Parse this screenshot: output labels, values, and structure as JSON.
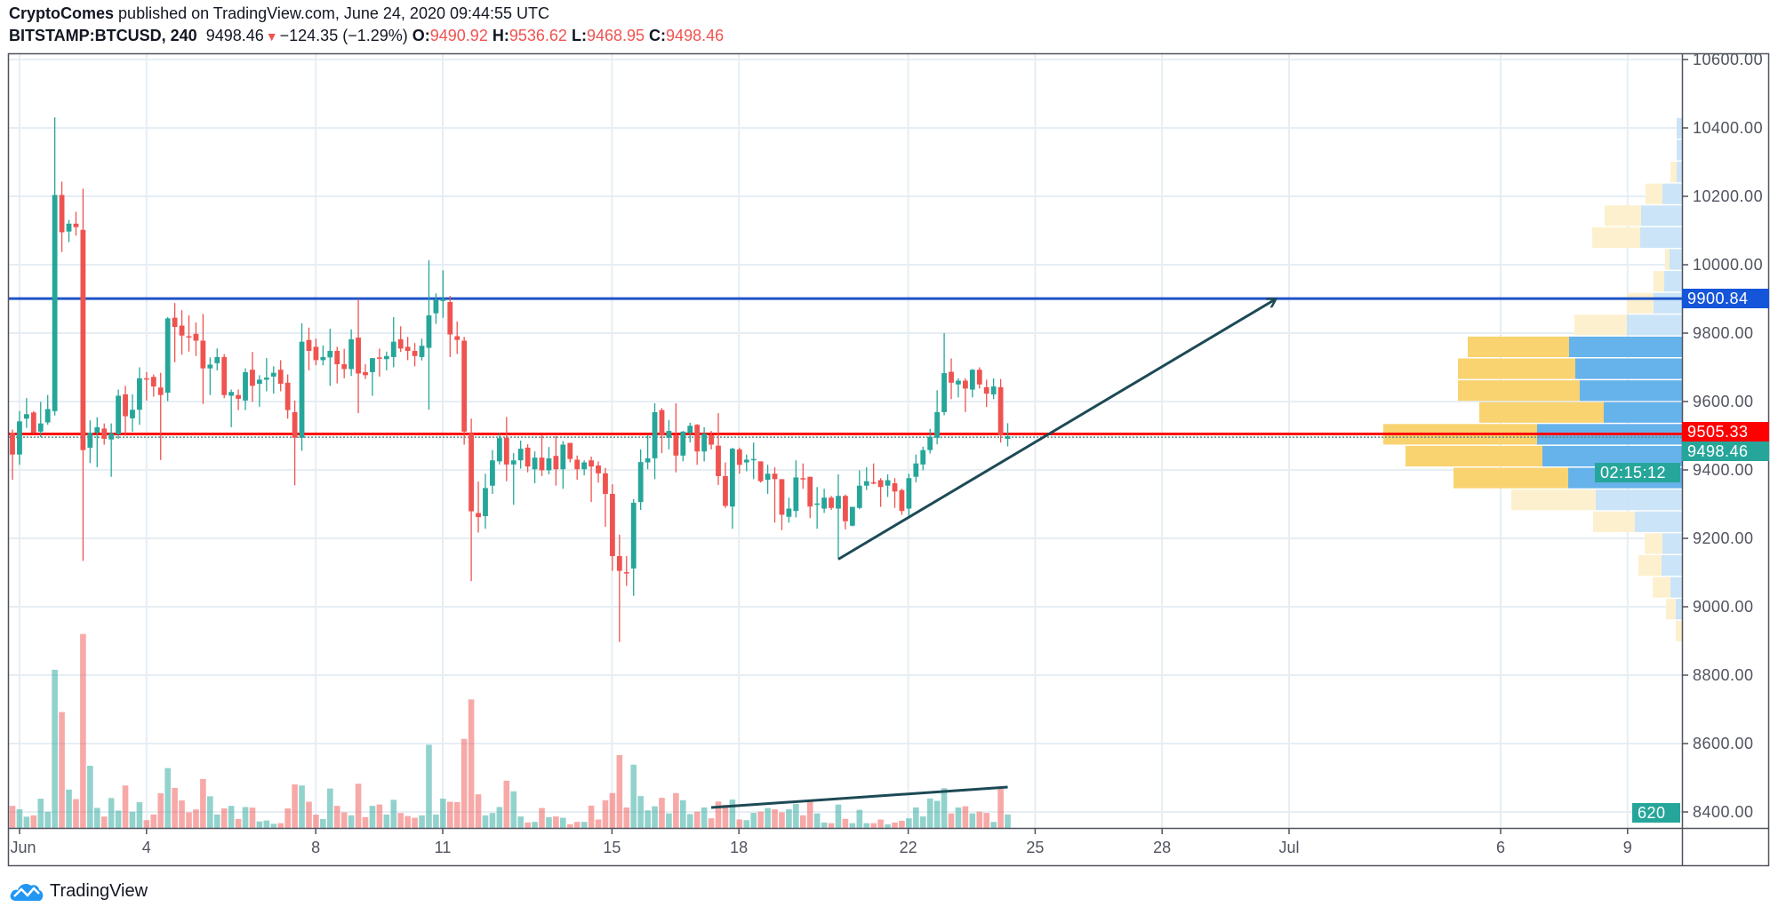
{
  "header": {
    "author": "CryptoComes",
    "published": "published on TradingView.com, June 24, 2020 09:44:55 UTC",
    "symbol": "BITSTAMP:BTCUSD, 240",
    "last": "9498.46",
    "change": "−124.35 (−1.29%)",
    "o_label": "O:",
    "o": "9490.92",
    "h_label": "H:",
    "h": "9536.62",
    "l_label": "L:",
    "l": "9468.95",
    "c_label": "C:",
    "c": "9498.46"
  },
  "footer": {
    "brand": "TradingView"
  },
  "colors": {
    "up": "#26a69a",
    "down": "#ef5350",
    "up_volume": "rgba(38,166,154,0.5)",
    "down_volume": "rgba(239,83,80,0.5)",
    "resistance": "#1e53c8",
    "support": "#ff0000",
    "annotation": "#1c4a55",
    "grid": "#e6eef4",
    "profile_up": "#5eaeea",
    "profile_down": "#f9d168",
    "profile_up_light": "#c8e3f7",
    "profile_down_light": "#fdefcb"
  },
  "chart_data": {
    "type": "candlestick",
    "interval": "240",
    "columns": [
      "open",
      "high",
      "low",
      "close",
      "volume"
    ],
    "candles": [
      [
        9509,
        9518,
        9371,
        9445,
        1020
      ],
      [
        9445,
        9572,
        9415,
        9542,
        860
      ],
      [
        9550,
        9610,
        9523,
        9563,
        520
      ],
      [
        9568,
        9572,
        9505,
        9509,
        580
      ],
      [
        9512,
        9599,
        9496,
        9536,
        1350
      ],
      [
        9539,
        9619,
        9532,
        9578,
        745
      ],
      [
        9572,
        10431,
        9559,
        10204,
        7300
      ],
      [
        10204,
        10243,
        10037,
        10095,
        5350
      ],
      [
        10097,
        10131,
        10066,
        10120,
        1770
      ],
      [
        10120,
        10155,
        10085,
        10110,
        1330
      ],
      [
        10102,
        10222,
        9134,
        9458,
        8950
      ],
      [
        9465,
        9545,
        9420,
        9509,
        2870
      ],
      [
        9509,
        9554,
        9408,
        9525,
        925
      ],
      [
        9521,
        9536,
        9474,
        9491,
        525
      ],
      [
        9489,
        9536,
        9380,
        9507,
        1380
      ],
      [
        9505,
        9635,
        9491,
        9617,
        800
      ],
      [
        9621,
        9646,
        9500,
        9557,
        1960
      ],
      [
        9551,
        9621,
        9512,
        9576,
        745
      ],
      [
        9576,
        9700,
        9532,
        9668,
        1190
      ],
      [
        9668,
        9686,
        9603,
        9666,
        360
      ],
      [
        9672,
        9679,
        9614,
        9644,
        620
      ],
      [
        9641,
        9684,
        9429,
        9619,
        1600
      ],
      [
        9626,
        9847,
        9601,
        9843,
        2760
      ],
      [
        9845,
        9888,
        9715,
        9818,
        1850
      ],
      [
        9822,
        9867,
        9737,
        9793,
        1270
      ],
      [
        9791,
        9852,
        9746,
        9789,
        720
      ],
      [
        9798,
        9831,
        9733,
        9778,
        855
      ],
      [
        9778,
        9856,
        9593,
        9697,
        2260
      ],
      [
        9697,
        9729,
        9619,
        9708,
        1460
      ],
      [
        9712,
        9755,
        9691,
        9730,
        620
      ],
      [
        9730,
        9739,
        9610,
        9619,
        900
      ],
      [
        9617,
        9635,
        9525,
        9628,
        1020
      ],
      [
        9619,
        9635,
        9575,
        9608,
        415
      ],
      [
        9603,
        9697,
        9575,
        9686,
        965
      ],
      [
        9693,
        9745,
        9599,
        9646,
        940
      ],
      [
        9652,
        9677,
        9585,
        9664,
        300
      ],
      [
        9664,
        9727,
        9630,
        9670,
        345
      ],
      [
        9673,
        9703,
        9623,
        9684,
        190
      ],
      [
        9693,
        9721,
        9630,
        9652,
        220
      ],
      [
        9655,
        9679,
        9550,
        9575,
        900
      ],
      [
        9569,
        9603,
        9355,
        9494,
        2010
      ],
      [
        9494,
        9829,
        9456,
        9775,
        1960
      ],
      [
        9780,
        9816,
        9691,
        9748,
        1210
      ],
      [
        9760,
        9784,
        9706,
        9721,
        610
      ],
      [
        9721,
        9764,
        9706,
        9730,
        415
      ],
      [
        9729,
        9813,
        9646,
        9748,
        1820
      ],
      [
        9748,
        9760,
        9653,
        9709,
        1020
      ],
      [
        9709,
        9754,
        9668,
        9695,
        720
      ],
      [
        9695,
        9811,
        9675,
        9782,
        580
      ],
      [
        9787,
        9900,
        9566,
        9682,
        2040
      ],
      [
        9686,
        9709,
        9666,
        9677,
        500
      ],
      [
        9686,
        9727,
        9617,
        9727,
        1020
      ],
      [
        9729,
        9755,
        9673,
        9727,
        1080
      ],
      [
        9724,
        9746,
        9691,
        9733,
        620
      ],
      [
        9730,
        9847,
        9700,
        9775,
        1300
      ],
      [
        9782,
        9820,
        9745,
        9755,
        690
      ],
      [
        9760,
        9789,
        9721,
        9748,
        550
      ],
      [
        9748,
        9771,
        9703,
        9733,
        470
      ],
      [
        9730,
        9784,
        9720,
        9763,
        580
      ],
      [
        9757,
        10013,
        9576,
        9852,
        3840
      ],
      [
        9858,
        9916,
        9827,
        9897,
        620
      ],
      [
        9894,
        9983,
        9845,
        9900,
        1350
      ],
      [
        9891,
        9909,
        9730,
        9796,
        1210
      ],
      [
        9791,
        9834,
        9739,
        9780,
        1190
      ],
      [
        9778,
        9789,
        9474,
        9512,
        4110
      ],
      [
        9507,
        9550,
        9075,
        9279,
        5930
      ],
      [
        9274,
        9366,
        9217,
        9262,
        1550
      ],
      [
        9265,
        9389,
        9228,
        9347,
        580
      ],
      [
        9354,
        9458,
        9330,
        9428,
        690
      ],
      [
        9425,
        9508,
        9416,
        9493,
        965
      ],
      [
        9494,
        9555,
        9367,
        9416,
        2180
      ],
      [
        9416,
        9449,
        9298,
        9428,
        1690
      ],
      [
        9428,
        9486,
        9404,
        9462,
        530
      ],
      [
        9465,
        9475,
        9393,
        9410,
        250
      ],
      [
        9402,
        9454,
        9361,
        9436,
        280
      ],
      [
        9436,
        9501,
        9382,
        9399,
        920
      ],
      [
        9399,
        9467,
        9387,
        9434,
        500
      ],
      [
        9441,
        9499,
        9354,
        9402,
        530
      ],
      [
        9402,
        9484,
        9345,
        9474,
        470
      ],
      [
        9479,
        9479,
        9422,
        9432,
        170
      ],
      [
        9430,
        9442,
        9371,
        9402,
        280
      ],
      [
        9402,
        9428,
        9384,
        9422,
        280
      ],
      [
        9428,
        9439,
        9306,
        9410,
        1030
      ],
      [
        9413,
        9425,
        9363,
        9390,
        390
      ],
      [
        9390,
        9406,
        9234,
        9330,
        1280
      ],
      [
        9330,
        9358,
        9105,
        9148,
        1610
      ],
      [
        9148,
        9211,
        8897,
        9105,
        3360
      ],
      [
        9101,
        9148,
        9061,
        9098,
        945
      ],
      [
        9112,
        9315,
        9032,
        9304,
        2920
      ],
      [
        9306,
        9460,
        9283,
        9423,
        1470
      ],
      [
        9422,
        9503,
        9402,
        9434,
        810
      ],
      [
        9434,
        9595,
        9373,
        9569,
        1000
      ],
      [
        9575,
        9581,
        9449,
        9501,
        1390
      ],
      [
        9494,
        9546,
        9460,
        9514,
        670
      ],
      [
        9501,
        9595,
        9393,
        9442,
        1610
      ],
      [
        9442,
        9514,
        9425,
        9512,
        1280
      ],
      [
        9508,
        9538,
        9480,
        9529,
        640
      ],
      [
        9532,
        9534,
        9415,
        9454,
        750
      ],
      [
        9454,
        9525,
        9425,
        9506,
        945
      ],
      [
        9501,
        9514,
        9460,
        9474,
        445
      ],
      [
        9471,
        9566,
        9356,
        9382,
        1220
      ],
      [
        9382,
        9422,
        9289,
        9295,
        1060
      ],
      [
        9293,
        9465,
        9228,
        9462,
        1310
      ],
      [
        9460,
        9465,
        9389,
        9415,
        390
      ],
      [
        9422,
        9445,
        9396,
        9430,
        360
      ],
      [
        9430,
        9480,
        9373,
        9432,
        695
      ],
      [
        9425,
        9425,
        9363,
        9367,
        750
      ],
      [
        9371,
        9415,
        9330,
        9389,
        920
      ],
      [
        9389,
        9408,
        9246,
        9373,
        860
      ],
      [
        9373,
        9373,
        9224,
        9269,
        720
      ],
      [
        9263,
        9319,
        9246,
        9287,
        860
      ],
      [
        9280,
        9428,
        9261,
        9378,
        1110
      ],
      [
        9376,
        9419,
        9345,
        9374,
        580
      ],
      [
        9380,
        9380,
        9259,
        9293,
        1220
      ],
      [
        9298,
        9350,
        9228,
        9302,
        670
      ],
      [
        9287,
        9345,
        9274,
        9319,
        250
      ],
      [
        9319,
        9324,
        9283,
        9289,
        220
      ],
      [
        9287,
        9387,
        9139,
        9324,
        1080
      ],
      [
        9324,
        9328,
        9226,
        9250,
        420
      ],
      [
        9237,
        9292,
        9235,
        9292,
        220
      ],
      [
        9289,
        9399,
        9285,
        9354,
        835
      ],
      [
        9354,
        9408,
        9341,
        9367,
        220
      ],
      [
        9364,
        9419,
        9358,
        9363,
        220
      ],
      [
        9370,
        9376,
        9292,
        9350,
        390
      ],
      [
        9354,
        9387,
        9321,
        9370,
        170
      ],
      [
        9361,
        9376,
        9289,
        9337,
        250
      ],
      [
        9341,
        9345,
        9269,
        9280,
        330
      ],
      [
        9287,
        9389,
        9266,
        9376,
        445
      ],
      [
        9380,
        9445,
        9364,
        9419,
        945
      ],
      [
        9416,
        9468,
        9399,
        9458,
        530
      ],
      [
        9458,
        9520,
        9448,
        9497,
        1360
      ],
      [
        9494,
        9633,
        9475,
        9569,
        1250
      ],
      [
        9569,
        9800,
        9560,
        9683,
        1835
      ],
      [
        9687,
        9726,
        9607,
        9655,
        670
      ],
      [
        9650,
        9668,
        9612,
        9661,
        945
      ],
      [
        9661,
        9668,
        9569,
        9638,
        1000
      ],
      [
        9635,
        9695,
        9612,
        9693,
        670
      ],
      [
        9693,
        9700,
        9638,
        9650,
        750
      ],
      [
        9642,
        9664,
        9584,
        9623,
        695
      ],
      [
        9621,
        9668,
        9607,
        9644,
        280
      ],
      [
        9642,
        9666,
        9480,
        9501,
        1810
      ],
      [
        9490.92,
        9536.62,
        9468.95,
        9498.46,
        620
      ]
    ],
    "y_axis": {
      "min": 8400,
      "max": 10600,
      "ticks": [
        "10600.00",
        "10400.00",
        "10200.00",
        "10000.00",
        "9800.00",
        "9600.00",
        "9400.00",
        "9200.00",
        "9000.00",
        "8800.00",
        "8600.00",
        "8400.00"
      ],
      "grid": true
    },
    "x_axis": {
      "ticks": [
        {
          "label": "Jun",
          "date": "2020-06-01"
        },
        {
          "label": "4",
          "date": "2020-06-04"
        },
        {
          "label": "8",
          "date": "2020-06-08"
        },
        {
          "label": "11",
          "date": "2020-06-11"
        },
        {
          "label": "15",
          "date": "2020-06-15"
        },
        {
          "label": "18",
          "date": "2020-06-18"
        },
        {
          "label": "22",
          "date": "2020-06-22"
        },
        {
          "label": "25",
          "date": "2020-06-25"
        },
        {
          "label": "28",
          "date": "2020-06-28"
        },
        {
          "label": "Jul",
          "date": "2020-07-01"
        },
        {
          "label": "6",
          "date": "2020-07-06"
        },
        {
          "label": "9",
          "date": "2020-07-09"
        }
      ],
      "grid": true
    },
    "horizontal_lines": [
      {
        "price": 9900.84,
        "label": "9900.84",
        "color": "#1e53c8",
        "label_bg": "#1455d9"
      },
      {
        "price": 9505.33,
        "label": "9505.33",
        "color": "#ff0000",
        "label_bg": "#ff0000"
      }
    ],
    "last_price": {
      "price": 9498.46,
      "label": "9498.46",
      "countdown": "02:15:12",
      "label_bg": "#26a69a"
    },
    "last_volume": {
      "label": "620",
      "label_bg": "#26a69a"
    },
    "volume_profile": {
      "price_high": 10431,
      "price_low": 8897,
      "columns": [
        "up_volume",
        "down_volume",
        "in_value_area"
      ],
      "rows": [
        [
          6,
          0,
          false
        ],
        [
          6,
          0,
          false
        ],
        [
          6,
          7,
          false
        ],
        [
          22,
          19,
          false
        ],
        [
          46,
          41,
          false
        ],
        [
          47,
          54,
          false
        ],
        [
          14,
          5,
          false
        ],
        [
          20,
          12,
          false
        ],
        [
          32,
          30,
          false
        ],
        [
          62,
          59,
          false
        ],
        [
          127,
          114,
          true
        ],
        [
          120,
          132,
          true
        ],
        [
          115,
          137,
          true
        ],
        [
          88,
          140,
          true
        ],
        [
          163,
          173,
          true
        ],
        [
          157,
          154,
          true
        ],
        [
          128,
          129,
          true
        ],
        [
          97,
          95,
          false
        ],
        [
          53,
          47,
          false
        ],
        [
          22,
          20,
          false
        ],
        [
          23,
          26,
          false
        ],
        [
          13,
          20,
          false
        ],
        [
          7,
          11,
          false
        ],
        [
          0,
          7,
          false
        ]
      ]
    },
    "annotations": [
      {
        "type": "arrow",
        "from": {
          "bar": 117,
          "price": 9139
        },
        "to": {
          "bar": 179,
          "price": 9900
        }
      },
      {
        "type": "trendline",
        "pane": "volume",
        "from": {
          "bar": 99,
          "volume": 943
        },
        "to": {
          "bar": 141,
          "volume": 1886
        }
      }
    ]
  }
}
